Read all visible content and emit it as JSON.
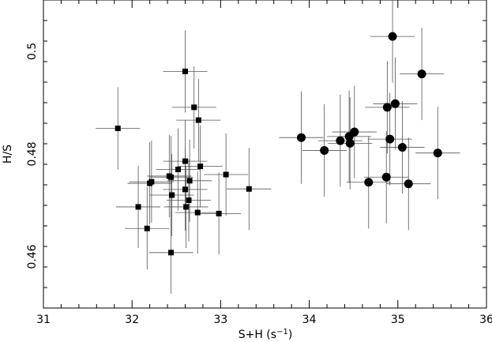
{
  "chart_data": {
    "type": "scatter",
    "xlabel": "S+H (s",
    "xlabel_sup": "−1",
    "xlabel_close": ")",
    "ylabel": "H/S",
    "xlim": [
      31,
      36
    ],
    "ylim": [
      0.45,
      0.51
    ],
    "xticks": [
      31,
      32,
      33,
      34,
      35,
      36
    ],
    "xtick_labels": [
      "31",
      "32",
      "33",
      "34",
      "35",
      "36"
    ],
    "yticks": [
      0.46,
      0.48,
      0.5
    ],
    "ytick_labels": [
      "0.46",
      "0.48",
      "0.5"
    ],
    "grid": false,
    "series": [
      {
        "marker": "square",
        "color": "#000000",
        "points": [
          {
            "x": 31.84,
            "y": 0.485,
            "xerr": 0.25,
            "yerr": 0.008
          },
          {
            "x": 32.07,
            "y": 0.4697,
            "xerr": 0.25,
            "yerr": 0.008
          },
          {
            "x": 32.17,
            "y": 0.4655,
            "xerr": 0.25,
            "yerr": 0.008
          },
          {
            "x": 32.2,
            "y": 0.4743,
            "xerr": 0.25,
            "yerr": 0.008
          },
          {
            "x": 32.22,
            "y": 0.4746,
            "xerr": 0.25,
            "yerr": 0.008
          },
          {
            "x": 32.42,
            "y": 0.4757,
            "xerr": 0.25,
            "yerr": 0.008
          },
          {
            "x": 32.44,
            "y": 0.4755,
            "xerr": 0.25,
            "yerr": 0.008
          },
          {
            "x": 32.45,
            "y": 0.472,
            "xerr": 0.25,
            "yerr": 0.008
          },
          {
            "x": 32.44,
            "y": 0.4608,
            "xerr": 0.25,
            "yerr": 0.008
          },
          {
            "x": 32.52,
            "y": 0.477,
            "xerr": 0.25,
            "yerr": 0.008
          },
          {
            "x": 32.6,
            "y": 0.4961,
            "xerr": 0.25,
            "yerr": 0.008
          },
          {
            "x": 32.6,
            "y": 0.4786,
            "xerr": 0.25,
            "yerr": 0.008
          },
          {
            "x": 32.6,
            "y": 0.4731,
            "xerr": 0.25,
            "yerr": 0.008
          },
          {
            "x": 32.61,
            "y": 0.4697,
            "xerr": 0.25,
            "yerr": 0.008
          },
          {
            "x": 32.65,
            "y": 0.4748,
            "xerr": 0.25,
            "yerr": 0.008
          },
          {
            "x": 32.64,
            "y": 0.471,
            "xerr": 0.25,
            "yerr": 0.008
          },
          {
            "x": 32.7,
            "y": 0.4891,
            "xerr": 0.25,
            "yerr": 0.008
          },
          {
            "x": 32.74,
            "y": 0.4686,
            "xerr": 0.25,
            "yerr": 0.008
          },
          {
            "x": 32.75,
            "y": 0.4866,
            "xerr": 0.25,
            "yerr": 0.008
          },
          {
            "x": 32.77,
            "y": 0.4776,
            "xerr": 0.25,
            "yerr": 0.008
          },
          {
            "x": 32.98,
            "y": 0.4684,
            "xerr": 0.25,
            "yerr": 0.008
          },
          {
            "x": 33.06,
            "y": 0.476,
            "xerr": 0.25,
            "yerr": 0.008
          },
          {
            "x": 33.32,
            "y": 0.4732,
            "xerr": 0.25,
            "yerr": 0.008
          }
        ]
      },
      {
        "marker": "circle",
        "color": "#000000",
        "points": [
          {
            "x": 33.91,
            "y": 0.4832,
            "xerr": 0.25,
            "yerr": 0.009
          },
          {
            "x": 34.17,
            "y": 0.4807,
            "xerr": 0.25,
            "yerr": 0.009
          },
          {
            "x": 34.35,
            "y": 0.4826,
            "xerr": 0.25,
            "yerr": 0.009
          },
          {
            "x": 34.45,
            "y": 0.4834,
            "xerr": 0.25,
            "yerr": 0.009
          },
          {
            "x": 34.46,
            "y": 0.4821,
            "xerr": 0.25,
            "yerr": 0.009
          },
          {
            "x": 34.51,
            "y": 0.4843,
            "xerr": 0.25,
            "yerr": 0.009
          },
          {
            "x": 34.67,
            "y": 0.4745,
            "xerr": 0.25,
            "yerr": 0.009
          },
          {
            "x": 34.87,
            "y": 0.4755,
            "xerr": 0.25,
            "yerr": 0.009
          },
          {
            "x": 34.88,
            "y": 0.4891,
            "xerr": 0.25,
            "yerr": 0.009
          },
          {
            "x": 34.91,
            "y": 0.4829,
            "xerr": 0.25,
            "yerr": 0.009
          },
          {
            "x": 34.94,
            "y": 0.5029,
            "xerr": 0.25,
            "yerr": 0.009
          },
          {
            "x": 34.97,
            "y": 0.4898,
            "xerr": 0.25,
            "yerr": 0.009
          },
          {
            "x": 35.05,
            "y": 0.4813,
            "xerr": 0.25,
            "yerr": 0.009
          },
          {
            "x": 35.12,
            "y": 0.4742,
            "xerr": 0.25,
            "yerr": 0.009
          },
          {
            "x": 35.27,
            "y": 0.4956,
            "xerr": 0.25,
            "yerr": 0.009
          },
          {
            "x": 35.45,
            "y": 0.4802,
            "xerr": 0.25,
            "yerr": 0.009
          }
        ]
      }
    ]
  }
}
